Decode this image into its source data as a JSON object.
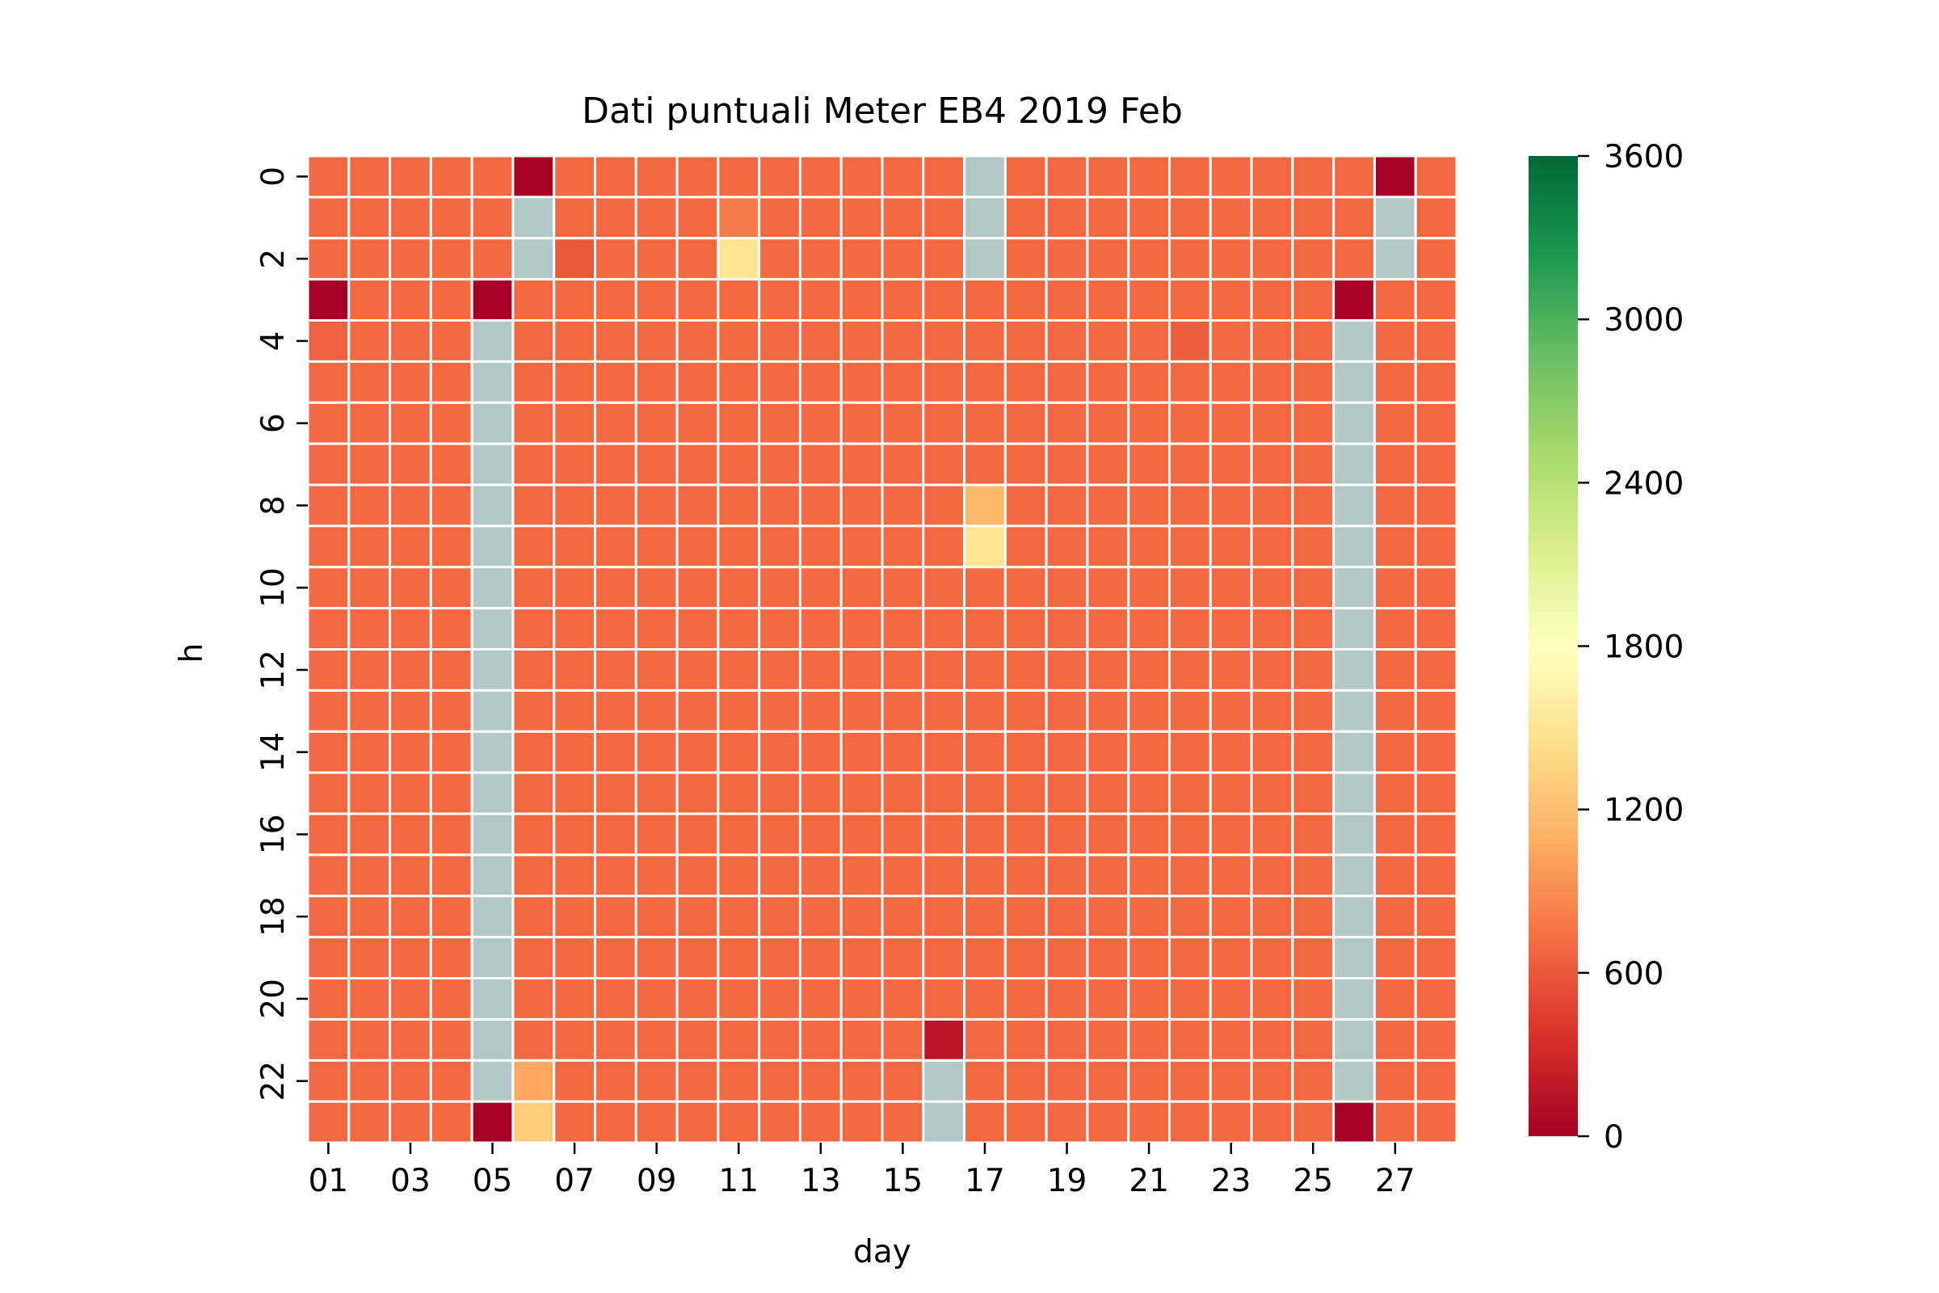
{
  "chart_data": {
    "type": "heatmap",
    "title": "Dati puntuali Meter EB4 2019 Feb",
    "xlabel": "day",
    "ylabel": "h",
    "x_categories": [
      "01",
      "02",
      "03",
      "04",
      "05",
      "06",
      "07",
      "08",
      "09",
      "10",
      "11",
      "12",
      "13",
      "14",
      "15",
      "16",
      "17",
      "18",
      "19",
      "20",
      "21",
      "22",
      "23",
      "24",
      "25",
      "26",
      "27",
      "28"
    ],
    "x_tick_labels": [
      "01",
      "03",
      "05",
      "07",
      "09",
      "11",
      "13",
      "15",
      "17",
      "19",
      "21",
      "23",
      "25",
      "27"
    ],
    "y_categories": [
      "0",
      "1",
      "2",
      "3",
      "4",
      "5",
      "6",
      "7",
      "8",
      "9",
      "10",
      "11",
      "12",
      "13",
      "14",
      "15",
      "16",
      "17",
      "18",
      "19",
      "20",
      "21",
      "22",
      "23"
    ],
    "y_tick_labels": [
      "0",
      "2",
      "4",
      "6",
      "8",
      "10",
      "12",
      "14",
      "16",
      "18",
      "20",
      "22"
    ],
    "color_scale": {
      "min": 0,
      "max": 3600,
      "ticks": [
        "0",
        "600",
        "1200",
        "1800",
        "2400",
        "3000",
        "3600"
      ],
      "colormap": "RdYlGn",
      "stops": [
        "#a50026",
        "#d73027",
        "#f46d43",
        "#fdae61",
        "#fee08b",
        "#ffffbf",
        "#d9ef8b",
        "#a6d96a",
        "#66bd63",
        "#1a9850",
        "#006837"
      ],
      "missing_color": "#b2c8c8"
    },
    "default_value": 690,
    "cells": [
      {
        "day": "06",
        "h": "0",
        "value": 0
      },
      {
        "day": "17",
        "h": "0",
        "value": null
      },
      {
        "day": "27",
        "h": "0",
        "value": 0
      },
      {
        "day": "06",
        "h": "1",
        "value": null
      },
      {
        "day": "11",
        "h": "1",
        "value": 800
      },
      {
        "day": "17",
        "h": "1",
        "value": null
      },
      {
        "day": "27",
        "h": "1",
        "value": null
      },
      {
        "day": "06",
        "h": "2",
        "value": null
      },
      {
        "day": "07",
        "h": "2",
        "value": 600
      },
      {
        "day": "11",
        "h": "2",
        "value": 1500
      },
      {
        "day": "17",
        "h": "2",
        "value": null
      },
      {
        "day": "27",
        "h": "2",
        "value": null
      },
      {
        "day": "01",
        "h": "3",
        "value": 0
      },
      {
        "day": "05",
        "h": "3",
        "value": 0
      },
      {
        "day": "26",
        "h": "3",
        "value": 0
      },
      {
        "day": "01",
        "h": "4",
        "value": 650
      },
      {
        "day": "22",
        "h": "4",
        "value": 630
      },
      {
        "day": "17",
        "h": "8",
        "value": 1150
      },
      {
        "day": "17",
        "h": "9",
        "value": 1500
      },
      {
        "day": "16",
        "h": "21",
        "value": 150
      },
      {
        "day": "06",
        "h": "22",
        "value": 1050
      },
      {
        "day": "16",
        "h": "22",
        "value": null
      },
      {
        "day": "05",
        "h": "23",
        "value": 0
      },
      {
        "day": "06",
        "h": "23",
        "value": 1300
      },
      {
        "day": "16",
        "h": "23",
        "value": null
      },
      {
        "day": "26",
        "h": "23",
        "value": 0
      }
    ],
    "missing_ranges": [
      {
        "day": "05",
        "h_from": "4",
        "h_to": "22"
      },
      {
        "day": "26",
        "h_from": "4",
        "h_to": "22"
      }
    ]
  }
}
